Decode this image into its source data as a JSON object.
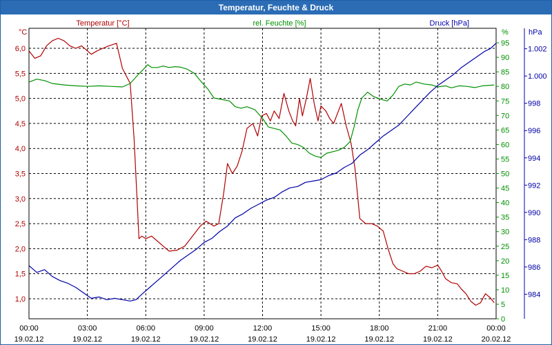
{
  "window": {
    "title": "Temperatur, Feuchte & Druck"
  },
  "colors": {
    "temperature": "#b00000",
    "humidity": "#009000",
    "pressure": "#0000a8",
    "titlebar": "#2b6cb5",
    "grid": "#000000"
  },
  "chart_data": {
    "type": "line",
    "title": "Temperatur, Feuchte & Druck",
    "x": {
      "range_hours": [
        0,
        24
      ],
      "ticks": [
        {
          "h": 0,
          "time": "00:00",
          "date": "19.02.12"
        },
        {
          "h": 3,
          "time": "03:00",
          "date": "19.02.12"
        },
        {
          "h": 6,
          "time": "06:00",
          "date": "19.02.12"
        },
        {
          "h": 9,
          "time": "09:00",
          "date": "19.02.12"
        },
        {
          "h": 12,
          "time": "12:00",
          "date": "19.02.12"
        },
        {
          "h": 15,
          "time": "15:00",
          "date": "19.02.12"
        },
        {
          "h": 18,
          "time": "18:00",
          "date": "19.02.12"
        },
        {
          "h": 21,
          "time": "21:00",
          "date": "19.02.12"
        },
        {
          "h": 24,
          "time": "00:00",
          "date": "20.02.12"
        }
      ]
    },
    "axes": {
      "temperature": {
        "label": "Temperatur [°C]",
        "unit": "°C",
        "range": [
          0.6,
          6.4
        ],
        "ticks": [
          {
            "v": 1.0,
            "label": "1,0"
          },
          {
            "v": 1.5,
            "label": "1,5"
          },
          {
            "v": 2.0,
            "label": "2,0"
          },
          {
            "v": 2.5,
            "label": "2,5"
          },
          {
            "v": 3.0,
            "label": "3,0"
          },
          {
            "v": 3.5,
            "label": "3,5"
          },
          {
            "v": 4.0,
            "label": "4,0"
          },
          {
            "v": 4.5,
            "label": "4,5"
          },
          {
            "v": 5.0,
            "label": "5,0"
          },
          {
            "v": 5.5,
            "label": "5,5"
          },
          {
            "v": 6.0,
            "label": "6,0"
          }
        ]
      },
      "humidity": {
        "label": "rel. Feuchte [%]",
        "unit": "%",
        "range": [
          0,
          100
        ],
        "ticks": [
          "0",
          "5",
          "10",
          "15",
          "20",
          "25",
          "30",
          "35",
          "40",
          "45",
          "50",
          "55",
          "60",
          "65",
          "70",
          "75",
          "80",
          "85",
          "90",
          "95"
        ]
      },
      "pressure": {
        "label": "Druck [hPa]",
        "unit": "hPa",
        "range": [
          982.2,
          1003.5
        ],
        "ticks": [
          {
            "v": 984,
            "label": "984"
          },
          {
            "v": 986,
            "label": "986"
          },
          {
            "v": 988,
            "label": "988"
          },
          {
            "v": 990,
            "label": "990"
          },
          {
            "v": 992,
            "label": "992"
          },
          {
            "v": 994,
            "label": "994"
          },
          {
            "v": 996,
            "label": "996"
          },
          {
            "v": 998,
            "label": "998"
          },
          {
            "v": 1000,
            "label": "1.000"
          },
          {
            "v": 1002,
            "label": "1.002"
          }
        ]
      }
    },
    "series": [
      {
        "name": "Temperatur",
        "axis": "temperature",
        "points": [
          [
            0,
            5.95
          ],
          [
            0.3,
            5.8
          ],
          [
            0.6,
            5.85
          ],
          [
            0.9,
            6.05
          ],
          [
            1.2,
            6.15
          ],
          [
            1.5,
            6.2
          ],
          [
            1.8,
            6.15
          ],
          [
            2.1,
            6.05
          ],
          [
            2.4,
            6.0
          ],
          [
            2.7,
            6.05
          ],
          [
            3.0,
            5.95
          ],
          [
            3.2,
            5.88
          ],
          [
            3.5,
            5.95
          ],
          [
            3.8,
            6.0
          ],
          [
            4.1,
            6.05
          ],
          [
            4.5,
            6.1
          ],
          [
            4.8,
            5.6
          ],
          [
            5.2,
            5.3
          ],
          [
            5.4,
            4.2
          ],
          [
            5.55,
            3.0
          ],
          [
            5.65,
            2.2
          ],
          [
            5.8,
            2.25
          ],
          [
            6.0,
            2.2
          ],
          [
            6.3,
            2.25
          ],
          [
            6.6,
            2.15
          ],
          [
            6.9,
            2.05
          ],
          [
            7.2,
            1.95
          ],
          [
            7.6,
            1.97
          ],
          [
            8.0,
            2.05
          ],
          [
            8.4,
            2.25
          ],
          [
            8.8,
            2.45
          ],
          [
            9.1,
            2.55
          ],
          [
            9.5,
            2.45
          ],
          [
            9.75,
            2.5
          ],
          [
            10.0,
            3.1
          ],
          [
            10.2,
            3.7
          ],
          [
            10.45,
            3.5
          ],
          [
            10.7,
            3.65
          ],
          [
            10.95,
            3.95
          ],
          [
            11.2,
            4.4
          ],
          [
            11.5,
            4.5
          ],
          [
            11.75,
            4.25
          ],
          [
            11.95,
            4.65
          ],
          [
            12.2,
            4.7
          ],
          [
            12.4,
            4.55
          ],
          [
            12.6,
            4.75
          ],
          [
            12.85,
            4.6
          ],
          [
            13.1,
            5.1
          ],
          [
            13.35,
            4.75
          ],
          [
            13.55,
            4.55
          ],
          [
            13.7,
            4.45
          ],
          [
            13.9,
            5.0
          ],
          [
            14.05,
            4.65
          ],
          [
            14.25,
            5.0
          ],
          [
            14.45,
            5.4
          ],
          [
            14.65,
            4.9
          ],
          [
            14.85,
            4.55
          ],
          [
            15.0,
            4.85
          ],
          [
            15.25,
            4.75
          ],
          [
            15.45,
            4.6
          ],
          [
            15.65,
            4.5
          ],
          [
            15.9,
            4.75
          ],
          [
            16.05,
            4.9
          ],
          [
            16.3,
            4.45
          ],
          [
            16.55,
            4.1
          ],
          [
            16.75,
            3.6
          ],
          [
            17.0,
            2.6
          ],
          [
            17.3,
            2.5
          ],
          [
            17.6,
            2.5
          ],
          [
            17.9,
            2.45
          ],
          [
            18.2,
            2.35
          ],
          [
            18.45,
            2.0
          ],
          [
            18.7,
            1.7
          ],
          [
            18.9,
            1.6
          ],
          [
            19.2,
            1.55
          ],
          [
            19.5,
            1.5
          ],
          [
            19.8,
            1.5
          ],
          [
            20.1,
            1.55
          ],
          [
            20.4,
            1.65
          ],
          [
            20.7,
            1.62
          ],
          [
            21.0,
            1.67
          ],
          [
            21.2,
            1.55
          ],
          [
            21.4,
            1.4
          ],
          [
            21.7,
            1.32
          ],
          [
            22.0,
            1.3
          ],
          [
            22.2,
            1.2
          ],
          [
            22.45,
            1.1
          ],
          [
            22.7,
            0.95
          ],
          [
            22.95,
            0.87
          ],
          [
            23.2,
            0.92
          ],
          [
            23.45,
            1.1
          ],
          [
            23.7,
            1.02
          ],
          [
            23.9,
            0.92
          ]
        ]
      },
      {
        "name": "rel. Feuchte",
        "axis": "humidity",
        "points": [
          [
            0,
            81.5
          ],
          [
            0.4,
            82.5
          ],
          [
            0.8,
            82
          ],
          [
            1.2,
            81
          ],
          [
            1.8,
            80.5
          ],
          [
            2.4,
            80.2
          ],
          [
            3.0,
            80
          ],
          [
            3.6,
            80.2
          ],
          [
            4.2,
            80
          ],
          [
            4.8,
            79.8
          ],
          [
            5.2,
            81
          ],
          [
            5.6,
            84
          ],
          [
            5.9,
            86
          ],
          [
            6.1,
            87.5
          ],
          [
            6.3,
            86.5
          ],
          [
            6.6,
            86.5
          ],
          [
            6.9,
            87
          ],
          [
            7.2,
            86.5
          ],
          [
            7.5,
            86.8
          ],
          [
            7.8,
            86.6
          ],
          [
            8.1,
            86
          ],
          [
            8.5,
            84.5
          ],
          [
            8.8,
            82
          ],
          [
            9.2,
            79
          ],
          [
            9.5,
            76
          ],
          [
            9.9,
            75.5
          ],
          [
            10.3,
            75
          ],
          [
            10.6,
            73
          ],
          [
            10.9,
            72.5
          ],
          [
            11.2,
            73
          ],
          [
            11.6,
            72
          ],
          [
            12.0,
            69
          ],
          [
            12.3,
            66
          ],
          [
            12.6,
            65.5
          ],
          [
            12.9,
            65
          ],
          [
            13.2,
            63
          ],
          [
            13.5,
            60.5
          ],
          [
            13.8,
            60
          ],
          [
            14.1,
            59
          ],
          [
            14.4,
            57
          ],
          [
            14.7,
            56
          ],
          [
            15.0,
            55.5
          ],
          [
            15.3,
            57
          ],
          [
            15.6,
            57.5
          ],
          [
            15.9,
            58
          ],
          [
            16.2,
            59
          ],
          [
            16.5,
            61
          ],
          [
            16.7,
            66
          ],
          [
            16.9,
            72
          ],
          [
            17.1,
            76
          ],
          [
            17.4,
            78
          ],
          [
            17.7,
            76.5
          ],
          [
            18.1,
            75.5
          ],
          [
            18.4,
            75
          ],
          [
            18.7,
            77
          ],
          [
            19.0,
            80
          ],
          [
            19.3,
            80.8
          ],
          [
            19.6,
            80.5
          ],
          [
            19.9,
            81.5
          ],
          [
            20.3,
            80.8
          ],
          [
            20.7,
            80.5
          ],
          [
            21.0,
            79.8
          ],
          [
            21.4,
            80.2
          ],
          [
            21.7,
            79.5
          ],
          [
            22.1,
            80.2
          ],
          [
            22.5,
            80
          ],
          [
            22.9,
            79.6
          ],
          [
            23.3,
            80.2
          ],
          [
            23.9,
            80.5
          ]
        ]
      },
      {
        "name": "Druck",
        "axis": "pressure",
        "points": [
          [
            0,
            986.1
          ],
          [
            0.4,
            985.6
          ],
          [
            0.8,
            985.8
          ],
          [
            1.2,
            985.3
          ],
          [
            1.6,
            985.0
          ],
          [
            2.0,
            984.8
          ],
          [
            2.4,
            984.5
          ],
          [
            2.8,
            984.1
          ],
          [
            3.2,
            983.7
          ],
          [
            3.6,
            983.8
          ],
          [
            4.0,
            983.6
          ],
          [
            4.4,
            983.7
          ],
          [
            4.8,
            983.6
          ],
          [
            5.2,
            983.5
          ],
          [
            5.5,
            983.6
          ],
          [
            5.8,
            984.0
          ],
          [
            6.2,
            984.5
          ],
          [
            6.6,
            985.0
          ],
          [
            7.0,
            985.5
          ],
          [
            7.4,
            986.0
          ],
          [
            7.8,
            986.5
          ],
          [
            8.2,
            986.9
          ],
          [
            8.6,
            987.3
          ],
          [
            9.0,
            987.8
          ],
          [
            9.4,
            988.1
          ],
          [
            9.8,
            988.6
          ],
          [
            10.2,
            989.0
          ],
          [
            10.6,
            989.6
          ],
          [
            11.0,
            989.9
          ],
          [
            11.4,
            990.3
          ],
          [
            11.8,
            990.6
          ],
          [
            12.2,
            990.9
          ],
          [
            12.6,
            991.1
          ],
          [
            13.0,
            991.5
          ],
          [
            13.4,
            991.8
          ],
          [
            13.8,
            991.9
          ],
          [
            14.2,
            992.2
          ],
          [
            14.6,
            992.3
          ],
          [
            15.0,
            992.4
          ],
          [
            15.4,
            992.7
          ],
          [
            15.8,
            992.9
          ],
          [
            16.2,
            993.3
          ],
          [
            16.6,
            993.6
          ],
          [
            17.0,
            994.2
          ],
          [
            17.4,
            994.6
          ],
          [
            17.8,
            995.1
          ],
          [
            18.2,
            995.6
          ],
          [
            18.6,
            996.0
          ],
          [
            19.0,
            996.4
          ],
          [
            19.4,
            997.0
          ],
          [
            19.8,
            997.6
          ],
          [
            20.2,
            998.2
          ],
          [
            20.6,
            998.8
          ],
          [
            21.0,
            999.3
          ],
          [
            21.4,
            999.7
          ],
          [
            21.8,
            1000.1
          ],
          [
            22.2,
            1000.6
          ],
          [
            22.6,
            1001.0
          ],
          [
            23.0,
            1001.4
          ],
          [
            23.4,
            1001.8
          ],
          [
            23.7,
            1002.0
          ],
          [
            24.0,
            1002.4
          ]
        ]
      }
    ]
  }
}
